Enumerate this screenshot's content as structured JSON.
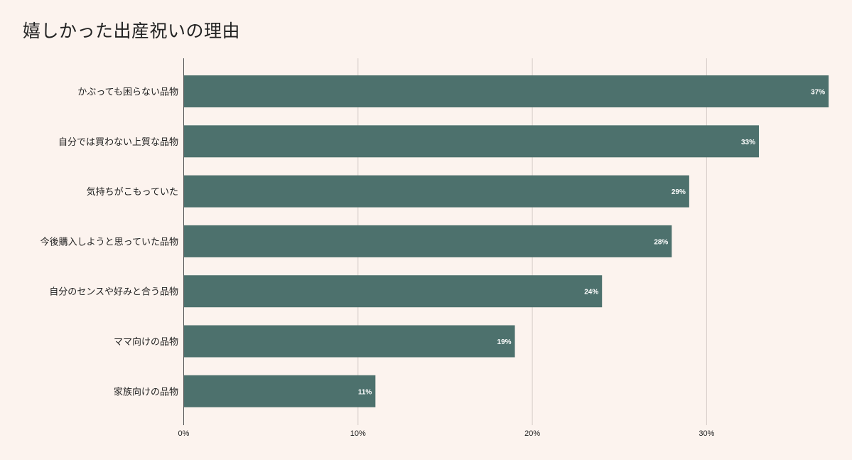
{
  "chart_data": {
    "type": "bar",
    "orientation": "horizontal",
    "title": "嬉しかった出産祝いの理由",
    "categories": [
      "かぶっても困らない品物",
      "自分では買わない上質な品物",
      "気持ちがこもっていた",
      "今後購入しようと思っていた品物",
      "自分のセンスや好みと合う品物",
      "ママ向けの品物",
      "家族向けの品物"
    ],
    "values": [
      37,
      33,
      29,
      28,
      24,
      19,
      11
    ],
    "data_labels": [
      "37%",
      "33%",
      "29%",
      "28%",
      "24%",
      "19%",
      "11%"
    ],
    "x_ticks": [
      0,
      10,
      20,
      30
    ],
    "x_tick_labels": [
      "0%",
      "10%",
      "20%",
      "30%"
    ],
    "xlim": [
      0,
      37
    ],
    "grid": true,
    "legend": "none",
    "colors": {
      "bar": "#4d716d",
      "background": "#fcf3ee",
      "grid": "#d6ccc8",
      "axis": "#555555"
    }
  }
}
